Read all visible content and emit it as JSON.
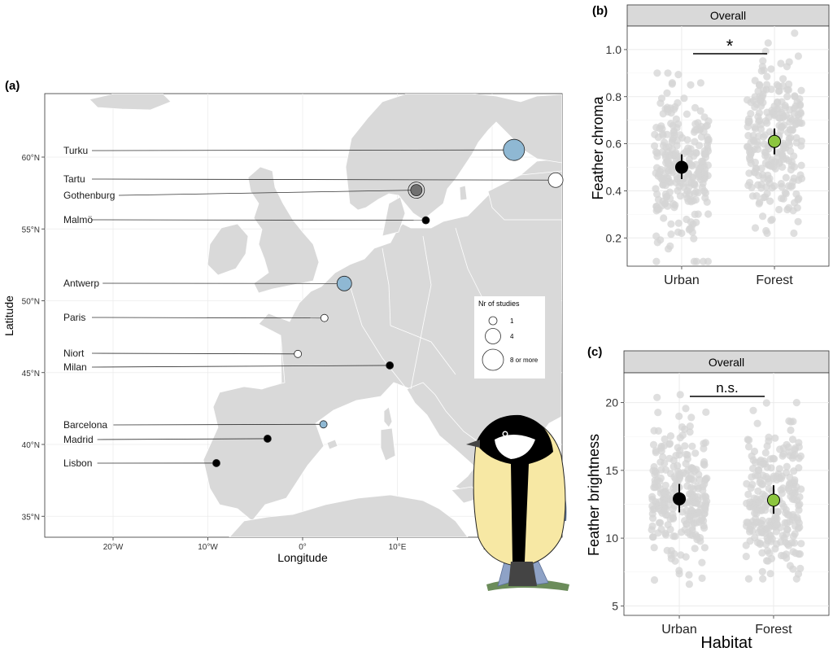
{
  "panel_a": {
    "label": "(a)",
    "xlabel": "Longitude",
    "ylabel": "Latitude",
    "x_ticks": [
      "20°W",
      "10°W",
      "0°",
      "10°E",
      "20°E"
    ],
    "y_ticks": [
      "60°N",
      "55°N",
      "50°N",
      "45°N",
      "40°N",
      "35°N"
    ],
    "legend": {
      "title": "Nr of studies",
      "entries": [
        "1",
        "4",
        "8 or more"
      ]
    }
  },
  "panel_b": {
    "label": "(b)",
    "strip": "Overall",
    "ylabel": "Feather chroma",
    "significance": "*"
  },
  "panel_c": {
    "label": "(c)",
    "strip": "Overall",
    "ylabel": "Feather brightness",
    "xlabel": "Habitat",
    "significance": "n.s."
  },
  "colors": {
    "urban_mean": "#000000",
    "forest_mean": "#8cc63f",
    "points": "#d9d9d9",
    "land": "#d9d9d9",
    "strip_bg": "#d9d9d9",
    "site_blue": "#8fb8d3"
  },
  "chart_data": [
    {
      "type": "scatter",
      "title": "",
      "xlabel": "Longitude",
      "ylabel": "Latitude",
      "xlim": [
        -27,
        31
      ],
      "ylim": [
        33.5,
        64
      ],
      "size_legend": [
        "1",
        "4",
        "8 or more"
      ],
      "sites": [
        {
          "city": "Turku",
          "lon": 22.3,
          "lat": 60.5,
          "studies": 8,
          "color": "#8fb8d3"
        },
        {
          "city": "Tartu",
          "lon": 26.7,
          "lat": 58.4,
          "studies": 4,
          "color": "#ffffff"
        },
        {
          "city": "Gothenburg",
          "lon": 12.0,
          "lat": 57.7,
          "studies": 2,
          "color": "#707070"
        },
        {
          "city": "Malmö",
          "lon": 13.0,
          "lat": 55.6,
          "studies": 1,
          "color": "#000000"
        },
        {
          "city": "Antwerp",
          "lon": 4.4,
          "lat": 51.2,
          "studies": 4,
          "color": "#8fb8d3"
        },
        {
          "city": "Paris",
          "lon": 2.3,
          "lat": 48.8,
          "studies": 1,
          "color": "#ffffff"
        },
        {
          "city": "Niort",
          "lon": -0.5,
          "lat": 46.3,
          "studies": 1,
          "color": "#ffffff"
        },
        {
          "city": "Milan",
          "lon": 9.2,
          "lat": 45.5,
          "studies": 1,
          "color": "#000000"
        },
        {
          "city": "Barcelona",
          "lon": 2.2,
          "lat": 41.4,
          "studies": 1,
          "color": "#8fb8d3"
        },
        {
          "city": "Madrid",
          "lon": -3.7,
          "lat": 40.4,
          "studies": 1,
          "color": "#000000"
        },
        {
          "city": "Lisbon",
          "lon": -9.1,
          "lat": 38.7,
          "studies": 1,
          "color": "#000000"
        }
      ]
    },
    {
      "type": "scatter",
      "title": "Overall",
      "xlabel": "",
      "ylabel": "Feather chroma",
      "categories": [
        "Urban",
        "Forest"
      ],
      "ylim": [
        0.08,
        1.1
      ],
      "yticks": [
        0.2,
        0.4,
        0.6,
        0.8,
        1.0
      ],
      "series": [
        {
          "name": "Urban",
          "mean": 0.5,
          "ci": [
            0.45,
            0.555
          ],
          "raw_range": [
            0.1,
            0.9
          ],
          "color": "#000000"
        },
        {
          "name": "Forest",
          "mean": 0.61,
          "ci": [
            0.555,
            0.665
          ],
          "raw_range": [
            0.22,
            1.07
          ],
          "color": "#8cc63f"
        }
      ],
      "significance": "*"
    },
    {
      "type": "scatter",
      "title": "Overall",
      "xlabel": "Habitat",
      "ylabel": "Feather brightness",
      "categories": [
        "Urban",
        "Forest"
      ],
      "ylim": [
        4.3,
        22.2
      ],
      "yticks": [
        5,
        10,
        15,
        20
      ],
      "series": [
        {
          "name": "Urban",
          "mean": 12.9,
          "ci": [
            11.9,
            14.0
          ],
          "raw_range": [
            6.3,
            20.7
          ],
          "color": "#000000"
        },
        {
          "name": "Forest",
          "mean": 12.8,
          "ci": [
            11.8,
            13.9
          ],
          "raw_range": [
            7.0,
            20.0
          ],
          "color": "#8cc63f"
        }
      ],
      "significance": "n.s."
    }
  ]
}
